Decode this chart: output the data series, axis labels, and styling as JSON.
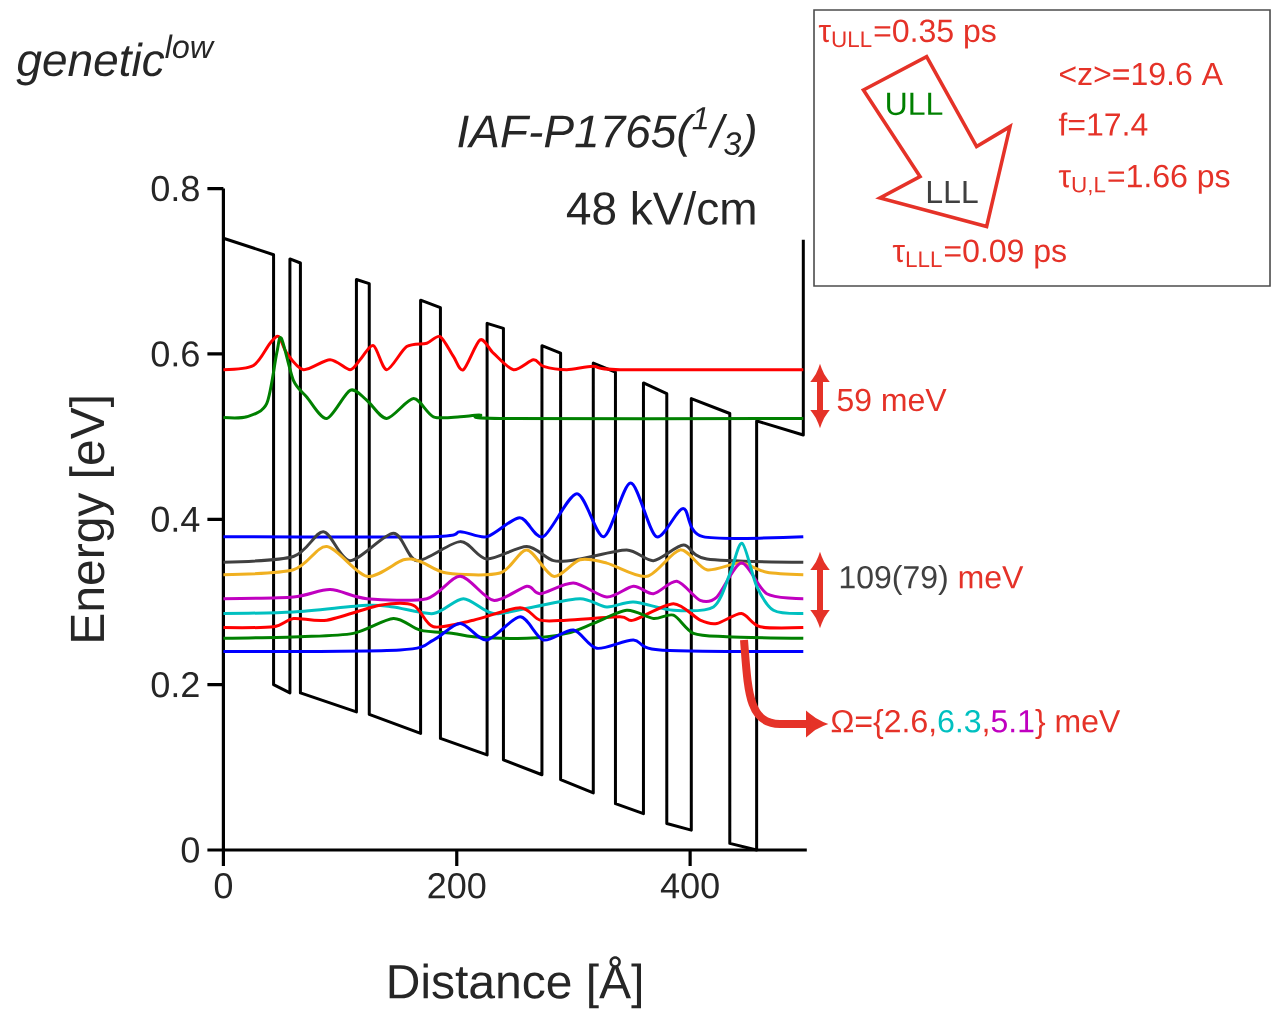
{
  "chart_data": {
    "type": "line",
    "title": "genetic$^{low}$",
    "subtitle": "IAF-P1765($^{1}$/$_{3}$)",
    "xlabel": "Distance [Å]",
    "ylabel": "Energy [eV]",
    "xlim": [
      0,
      500
    ],
    "ylim": [
      0,
      0.8
    ],
    "xticks": [
      0,
      200,
      400
    ],
    "yticks": [
      0,
      0.2,
      0.4,
      0.6,
      0.8
    ],
    "grid": false,
    "annotations": [
      "48 kV/cm",
      "τ$_{ULL}$=0.35 ps",
      "ULL",
      "LLL",
      "τ$_{LLL}$=0.09 ps",
      "<z>=19.6 A",
      "f=17.4",
      "τ$_{U,L}$=1.66 ps",
      "59 meV",
      "109(79)",
      "meV",
      "Ω={2.6,",
      "6.3",
      ",",
      "5.1",
      "} meV"
    ],
    "series": [
      {
        "color": "#000000",
        "x": [
          0,
          43,
          43,
          57,
          57,
          66,
          66,
          114,
          114,
          125,
          125,
          169,
          169,
          186,
          186,
          226,
          226,
          240,
          240,
          273,
          273,
          289,
          289,
          317,
          317,
          336,
          336,
          360,
          360,
          380,
          380,
          401,
          401,
          434,
          434,
          457,
          457,
          497,
          497
        ],
        "values": [
          0.74,
          0.72,
          0.2,
          0.19,
          0.715,
          0.71,
          0.19,
          0.167,
          0.69,
          0.685,
          0.164,
          0.141,
          0.665,
          0.656,
          0.135,
          0.115,
          0.637,
          0.631,
          0.109,
          0.091,
          0.61,
          0.601,
          0.085,
          0.069,
          0.589,
          0.578,
          0.056,
          0.044,
          0.565,
          0.552,
          0.032,
          0.024,
          0.546,
          0.528,
          0.008,
          0,
          0.519,
          0.502,
          0.738
        ]
      },
      {
        "color": "#ff0000",
        "x": [
          0,
          25.7,
          40,
          47.4,
          54.3,
          68.6,
          91.4,
          108.6,
          117.1,
          128.6,
          140,
          157.1,
          174.3,
          185.7,
          197.1,
          205.7,
          220,
          231.4,
          248.6,
          265.7,
          274.3,
          294.3,
          317,
          340,
          497
        ],
        "values": [
          0.581,
          0.586,
          0.613,
          0.621,
          0.601,
          0.581,
          0.593,
          0.581,
          0.593,
          0.61,
          0.581,
          0.609,
          0.613,
          0.621,
          0.597,
          0.581,
          0.617,
          0.601,
          0.581,
          0.593,
          0.585,
          0.581,
          0.585,
          0.581,
          0.581
        ]
      },
      {
        "color": "#008000",
        "x": [
          0,
          20,
          37.1,
          45.7,
          49.7,
          60,
          71.4,
          88.6,
          108.6,
          122.9,
          140,
          162.9,
          180,
          202.9,
          220,
          237.1,
          497
        ],
        "values": [
          0.523,
          0.524,
          0.54,
          0.601,
          0.619,
          0.568,
          0.548,
          0.522,
          0.556,
          0.544,
          0.522,
          0.546,
          0.524,
          0.524,
          0.526,
          0.522,
          0.522
        ]
      },
      {
        "color": "#0000ff",
        "x": [
          0,
          180,
          203,
          226,
          254,
          274,
          303,
          326,
          349,
          371,
          394,
          411,
          497
        ],
        "values": [
          0.379,
          0.379,
          0.385,
          0.379,
          0.402,
          0.379,
          0.431,
          0.379,
          0.444,
          0.379,
          0.413,
          0.379,
          0.379
        ]
      },
      {
        "color": "#404040",
        "x": [
          0,
          60,
          85.7,
          108.6,
          145.7,
          165.7,
          202.9,
          225.7,
          260,
          282.9,
          305.7,
          345.7,
          368.6,
          394.3,
          414.3,
          497
        ],
        "values": [
          0.348,
          0.355,
          0.385,
          0.35,
          0.383,
          0.35,
          0.373,
          0.352,
          0.367,
          0.35,
          0.352,
          0.363,
          0.35,
          0.369,
          0.352,
          0.348
        ]
      },
      {
        "color": "#f0b020",
        "x": [
          0,
          60,
          88.6,
          122.9,
          154.3,
          168.6,
          191.4,
          237.1,
          260,
          282.9,
          305.7,
          328.6,
          362.9,
          391.4,
          414.3,
          442.9,
          465.7,
          497
        ],
        "values": [
          0.333,
          0.339,
          0.367,
          0.331,
          0.351,
          0.349,
          0.335,
          0.335,
          0.363,
          0.331,
          0.351,
          0.347,
          0.331,
          0.363,
          0.339,
          0.347,
          0.336,
          0.333
        ]
      },
      {
        "color": "#c000c0",
        "x": [
          0,
          60,
          91.4,
          122.9,
          174.3,
          202.9,
          231.4,
          260,
          271.4,
          300,
          328.6,
          351.4,
          368.6,
          388.6,
          408.6,
          422.9,
          444,
          465.7,
          497
        ],
        "values": [
          0.304,
          0.306,
          0.315,
          0.304,
          0.304,
          0.331,
          0.302,
          0.319,
          0.31,
          0.323,
          0.306,
          0.319,
          0.31,
          0.325,
          0.302,
          0.306,
          0.347,
          0.31,
          0.304
        ]
      },
      {
        "color": "#00c0c0",
        "x": [
          0,
          60,
          122.9,
          145.7,
          180,
          205.7,
          231.4,
          265.7,
          305.7,
          328.6,
          351.4,
          385.7,
          420,
          434.3,
          444.6,
          457.1,
          471.4,
          497
        ],
        "values": [
          0.286,
          0.288,
          0.296,
          0.294,
          0.286,
          0.304,
          0.286,
          0.294,
          0.304,
          0.294,
          0.3,
          0.29,
          0.294,
          0.335,
          0.371,
          0.319,
          0.29,
          0.286
        ]
      },
      {
        "color": "#ff0000",
        "x": [
          0,
          42.9,
          60,
          88.6,
          134.3,
          162.9,
          180,
          214.3,
          254.3,
          271.4,
          294.3,
          340,
          351.4,
          385.7,
          408.6,
          422.9,
          444,
          460,
          497
        ],
        "values": [
          0.269,
          0.27,
          0.28,
          0.278,
          0.296,
          0.296,
          0.27,
          0.278,
          0.293,
          0.278,
          0.278,
          0.282,
          0.278,
          0.298,
          0.278,
          0.274,
          0.286,
          0.27,
          0.269
        ]
      },
      {
        "color": "#008000",
        "x": [
          0,
          65.7,
          111.4,
          145.7,
          168.6,
          197.1,
          214.3,
          260,
          294.3,
          317.1,
          345.7,
          368.6,
          385.7,
          402.9,
          431.4,
          497
        ],
        "values": [
          0.256,
          0.258,
          0.262,
          0.28,
          0.266,
          0.262,
          0.258,
          0.256,
          0.262,
          0.274,
          0.29,
          0.28,
          0.284,
          0.262,
          0.258,
          0.256
        ]
      },
      {
        "color": "#0000ff",
        "x": [
          0,
          151.4,
          180,
          202.9,
          225.7,
          254.3,
          274.3,
          300,
          320,
          351.4,
          374.3,
          497
        ],
        "values": [
          0.24,
          0.242,
          0.254,
          0.274,
          0.254,
          0.282,
          0.254,
          0.266,
          0.244,
          0.254,
          0.242,
          0.24
        ]
      }
    ]
  }
}
